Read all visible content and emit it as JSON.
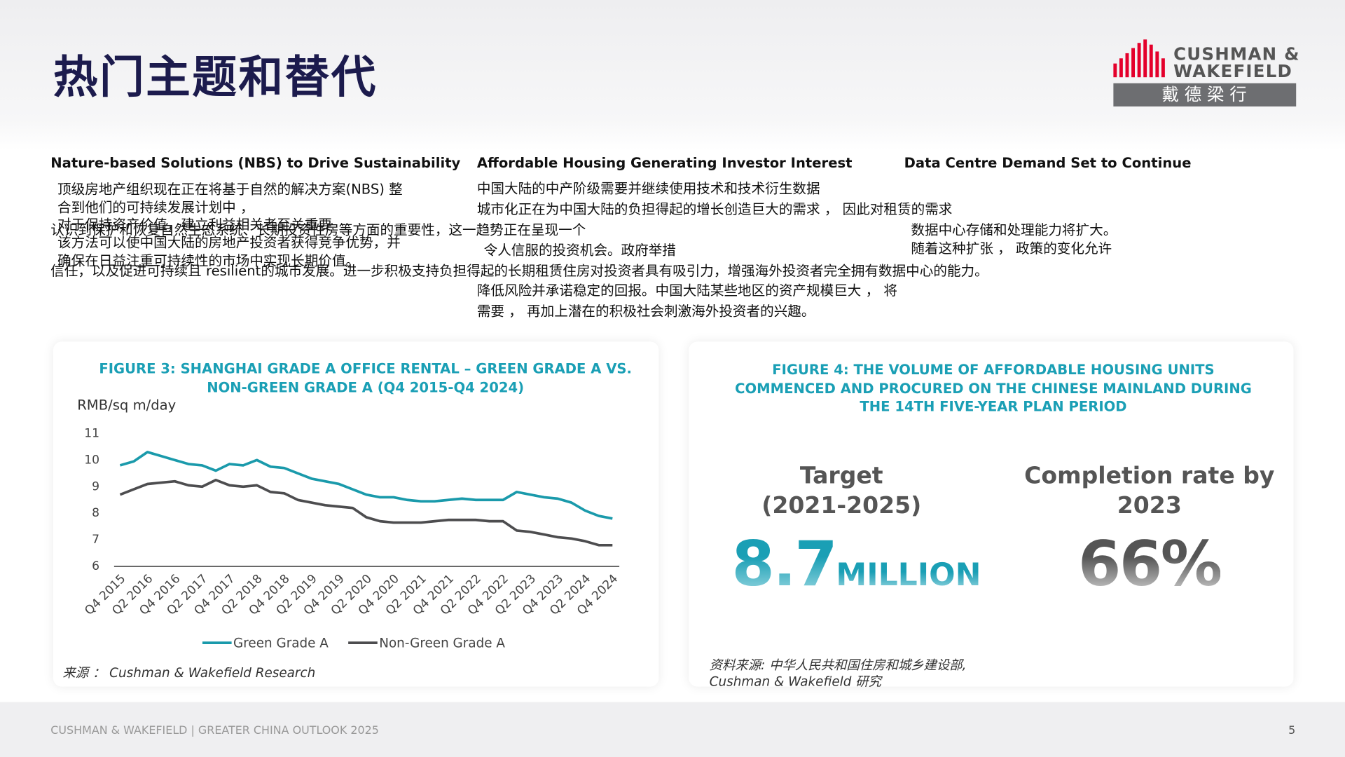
{
  "header": {
    "title": "热门主题和替代",
    "logo": {
      "line1": "CUSHMAN &",
      "line2": "WAKEFIELD",
      "chinese": "戴 德 梁 行"
    }
  },
  "sections": [
    {
      "heading": "Nature-based Solutions (NBS) to Drive Sustainability",
      "lines": [
        "顶级房地产组织现在正在将基于自然的解决方案(NBS) 整",
        "合到他们的可持续发展计划中 ，",
        "对于保持资产价值，建立利益相关者至关重要",
        "认识到保护和恢复自然生态系统、长期投资性房等方面的重要性，这一趋势正在呈现一个",
        "该方法可以使中国大陆的房地产投资者获得竞争优势，并",
        "确保在日益注重可持续性的市场中实现长期价值。",
        "信任，以及促进可持续且 resilient的城市发展。进一步积极支持负担得起的长期租赁住房对投资者具有吸引力，增强海外投资者完全拥有数据中心的能力。"
      ]
    },
    {
      "heading": "Affordable Housing Generating Investor Interest",
      "lines": [
        "中国大陆的中产阶级需要并继续使用技术和技术衍生数据",
        "城市化正在为中国大陆的负担得起的增长创造巨大的需求 ， 因此对租赁的需求",
        "令人信服的投资机会。政府举措",
        "降低风险并承诺稳定的回报。中国大陆某些地区的资产规模巨大 ， 将",
        "需要 ， 再加上潜在的积极社会刺激海外投资者的兴趣。"
      ]
    },
    {
      "heading": "Data Centre Demand Set to Continue",
      "lines": [
        "数据中心存储和处理能力将扩大。",
        "随着这种扩张 ， 政策的变化允许"
      ]
    }
  ],
  "chart_data": {
    "type": "line",
    "title": "FIGURE 3: SHANGHAI GRADE A OFFICE RENTAL – GREEN GRADE A VS. NON-GREEN GRADE A (Q4 2015-Q4 2024)",
    "y_label": "RMB/sq m/day",
    "categories": [
      "Q4 2015",
      null,
      "Q2 2016",
      null,
      "Q4 2016",
      null,
      "Q2 2017",
      null,
      "Q4 2017",
      null,
      "Q2 2018",
      null,
      "Q4 2018",
      null,
      "Q2 2019",
      null,
      "Q4 2019",
      null,
      "Q2 2020",
      null,
      "Q4 2020",
      null,
      "Q2 2021",
      null,
      "Q4 2021",
      null,
      "Q2 2022",
      null,
      "Q4 2022",
      null,
      "Q2 2023",
      null,
      "Q4 2023",
      null,
      "Q2 2024",
      null,
      "Q4 2024"
    ],
    "series": [
      {
        "name": "Green Grade A",
        "color": "#1a9aab",
        "values": [
          9.8,
          9.95,
          10.3,
          10.15,
          10.0,
          9.85,
          9.8,
          9.6,
          9.85,
          9.8,
          10.0,
          9.75,
          9.7,
          9.5,
          9.3,
          9.2,
          9.1,
          8.9,
          8.7,
          8.6,
          8.6,
          8.5,
          8.45,
          8.45,
          8.5,
          8.55,
          8.5,
          8.5,
          8.5,
          8.8,
          8.7,
          8.6,
          8.55,
          8.4,
          8.1,
          7.9,
          7.8
        ]
      },
      {
        "name": "Non-Green Grade A",
        "color": "#4d4d4f",
        "values": [
          8.7,
          8.9,
          9.1,
          9.15,
          9.2,
          9.05,
          9.0,
          9.25,
          9.05,
          9.0,
          9.05,
          8.8,
          8.75,
          8.5,
          8.4,
          8.3,
          8.25,
          8.2,
          7.85,
          7.7,
          7.65,
          7.65,
          7.65,
          7.7,
          7.75,
          7.75,
          7.75,
          7.7,
          7.7,
          7.35,
          7.3,
          7.2,
          7.1,
          7.05,
          6.95,
          6.8,
          6.8
        ]
      }
    ],
    "ylim": [
      6,
      11
    ],
    "yticks": [
      6,
      7,
      8,
      9,
      10,
      11
    ],
    "grid": false,
    "legend": "bottom",
    "source": "来源 ： Cushman & Wakefield Research"
  },
  "figure4": {
    "title": "FIGURE 4: THE VOLUME OF AFFORDABLE HOUSING UNITS COMMENCED AND PROCURED ON THE CHINESE MAINLAND DURING THE 14TH FIVE-YEAR PLAN PERIOD",
    "stats": [
      {
        "label": [
          "Target",
          "(2021-2025)"
        ],
        "value": "8.7",
        "unit": "MILLION"
      },
      {
        "label": [
          "Completion rate by",
          "2023"
        ],
        "value": "66%"
      }
    ],
    "source": [
      "资料来源: 中华人民共和国住房和城乡建设部,",
      "Cushman & Wakefield 研究"
    ]
  },
  "footer": {
    "text": "CUSHMAN & WAKEFIELD | GREATER CHINA OUTLOOK 2025",
    "page": "5"
  }
}
